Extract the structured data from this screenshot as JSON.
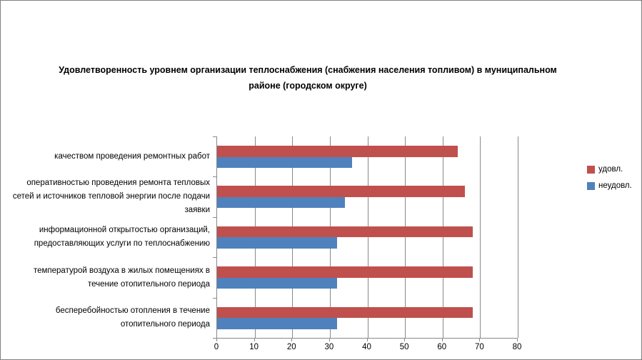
{
  "window": {
    "background": "#FFFFFF",
    "border_color": "#808080"
  },
  "chart_data": {
    "type": "bar",
    "orientation": "horizontal",
    "title": "Удовлетворенность уровнем организации теплоснабжения (снабжения населения топливом) в муниципальном районе (городском округе)",
    "categories": [
      "качеством проведения ремонтных работ",
      "оперативностью проведения ремонта тепловых сетей и источников тепловой энергии после подачи заявки",
      "информационной открытостью организаций, предоставляющих услуги по теплоснабжению",
      "температурой воздуха в жилых помещениях в течение отопительного периода",
      "бесперебойностью отопления в течение отопительного периода"
    ],
    "series": [
      {
        "name": "удовл.",
        "color": "#C0504D",
        "values": [
          64,
          66,
          68,
          68,
          68
        ]
      },
      {
        "name": "неудовл.",
        "color": "#4F81BD",
        "values": [
          36,
          34,
          32,
          32,
          32
        ]
      }
    ],
    "xlabel": "",
    "ylabel": "",
    "xlim": [
      0,
      80
    ],
    "xticks": [
      0,
      10,
      20,
      30,
      40,
      50,
      60,
      70,
      80
    ],
    "grid": "vertical",
    "gridline_color": "#898989",
    "axis_color": "#898989",
    "legend_position": "right",
    "plot_background": "#FFFFFF"
  }
}
